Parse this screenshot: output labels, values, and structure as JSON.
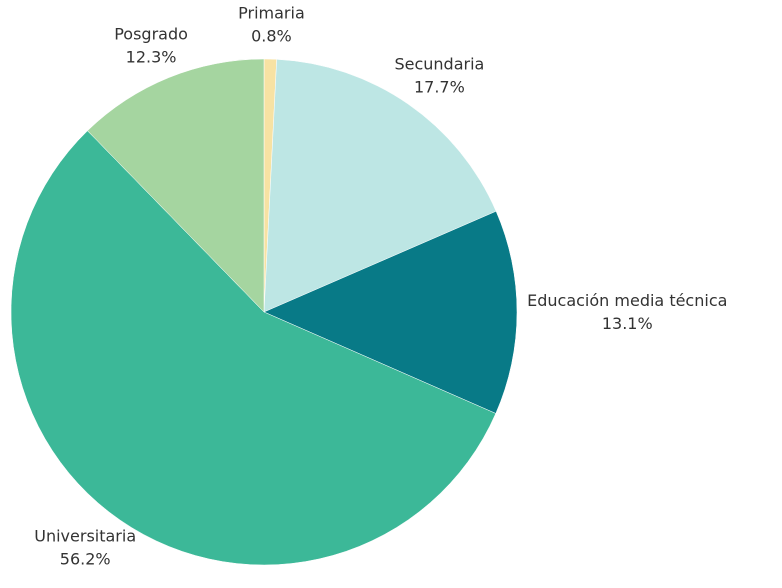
{
  "chart_data": {
    "type": "pie",
    "categories": [
      "Primaria",
      "Secundaria",
      "Educación media técnica",
      "Universitaria",
      "Posgrado"
    ],
    "values": [
      0.8,
      17.7,
      13.1,
      56.2,
      12.3
    ],
    "value_labels": [
      "0.8%",
      "17.7%",
      "13.1%",
      "56.2%",
      "12.3%"
    ],
    "colors": [
      "#f7e2a3",
      "#bde6e4",
      "#087a87",
      "#3cb898",
      "#a5d5a0"
    ]
  }
}
